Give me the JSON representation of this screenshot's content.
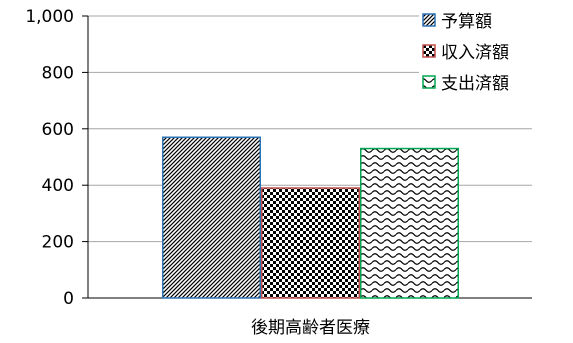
{
  "chart_data": {
    "type": "bar",
    "categories": [
      "後期高齢者医療"
    ],
    "series": [
      {
        "name": "予算額",
        "values": [
          570
        ],
        "color": "#2e74b5",
        "pattern": "diagonal-hatch"
      },
      {
        "name": "収入済額",
        "values": [
          390
        ],
        "color": "#c0504d",
        "pattern": "checker"
      },
      {
        "name": "支出済額",
        "values": [
          530
        ],
        "color": "#00a651",
        "pattern": "wave"
      }
    ],
    "ylim": [
      0,
      1000
    ],
    "yticks": [
      "0",
      "200",
      "400",
      "600",
      "800",
      "1,000"
    ],
    "ytick_values": [
      0,
      200,
      400,
      600,
      800,
      1000
    ],
    "grid": true,
    "legend_position": "top-right",
    "title": "",
    "xlabel": "",
    "ylabel": ""
  }
}
